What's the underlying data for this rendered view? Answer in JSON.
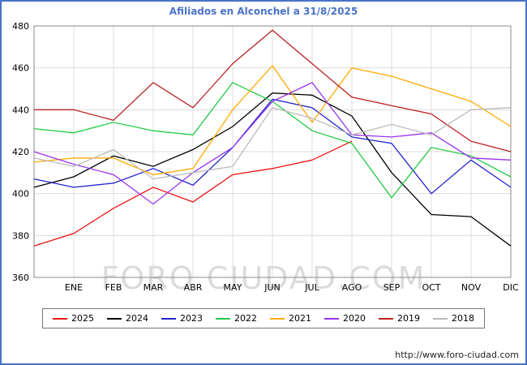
{
  "page": {
    "watermark": "FORO CIUDAD.COM",
    "footer_url": "http://www.foro-ciudad.com",
    "accent_color": "#4a73c9"
  },
  "chart_data": {
    "type": "line",
    "title": "Afiliados en Alconchel a 31/8/2025",
    "x_labels": [
      "",
      "ENE",
      "FEB",
      "MAR",
      "ABR",
      "MAY",
      "JUN",
      "JUL",
      "AGO",
      "SEP",
      "OCT",
      "NOV",
      "DIC"
    ],
    "y_ticks": [
      360,
      380,
      400,
      420,
      440,
      460,
      480
    ],
    "ylim": [
      360,
      480
    ],
    "grid": true,
    "legend_position": "bottom",
    "series": [
      {
        "name": "2025",
        "color": "#ee1111",
        "values": [
          375,
          381,
          393,
          403,
          396,
          409,
          412,
          416,
          425,
          null,
          null,
          null,
          null
        ]
      },
      {
        "name": "2024",
        "color": "#000000",
        "values": [
          403,
          408,
          418,
          413,
          421,
          432,
          448,
          447,
          437,
          410,
          390,
          389,
          375
        ]
      },
      {
        "name": "2023",
        "color": "#2222cc",
        "values": [
          407,
          403,
          405,
          412,
          404,
          422,
          445,
          441,
          427,
          424,
          400,
          416,
          403
        ]
      },
      {
        "name": "2022",
        "color": "#22cc44",
        "values": [
          431,
          429,
          434,
          430,
          428,
          453,
          444,
          430,
          424,
          398,
          422,
          418,
          408
        ]
      },
      {
        "name": "2021",
        "color": "#ffaa00",
        "values": [
          415,
          417,
          417,
          409,
          412,
          440,
          461,
          434,
          460,
          456,
          450,
          444,
          432
        ]
      },
      {
        "name": "2020",
        "color": "#9933ee",
        "values": [
          420,
          414,
          409,
          395,
          410,
          422,
          444,
          453,
          428,
          427,
          429,
          417,
          416
        ]
      },
      {
        "name": "2019",
        "color": "#bb2222",
        "values": [
          440,
          440,
          435,
          453,
          441,
          462,
          478,
          462,
          446,
          442,
          438,
          425,
          420
        ]
      },
      {
        "name": "2018",
        "color": "#bbbbbb",
        "values": [
          417,
          413,
          421,
          407,
          410,
          413,
          441,
          436,
          428,
          433,
          428,
          440,
          441
        ]
      }
    ]
  }
}
